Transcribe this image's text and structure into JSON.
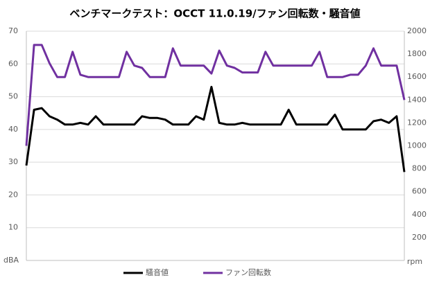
{
  "chart_data": {
    "type": "line",
    "title": "ベンチマークテスト：OCCT 11.0.19/ファン回転数・騒音値",
    "y_label": "dBA",
    "y2_label": "rpm",
    "ylim": [
      0,
      70
    ],
    "yticks": [
      10,
      20,
      30,
      40,
      50,
      60,
      70
    ],
    "y2lim": [
      0,
      2000
    ],
    "y2ticks": [
      200,
      400,
      600,
      800,
      1000,
      1200,
      1400,
      1600,
      1800,
      2000
    ],
    "grid": true,
    "legend": "bottom",
    "series": [
      {
        "name": "騒音値",
        "color": "#000000",
        "values": [
          29,
          46,
          46.5,
          44,
          43,
          41.5,
          41.5,
          42,
          41.5,
          44,
          41.5,
          41.5,
          41.5,
          41.5,
          41.5,
          44,
          43.5,
          43.5,
          43,
          41.5,
          41.5,
          41.5,
          44,
          43,
          53,
          42,
          41.5,
          41.5,
          42,
          41.5,
          41.5,
          41.5,
          41.5,
          41.5,
          46,
          41.5,
          41.5,
          41.5,
          41.5,
          41.5,
          44.5,
          40,
          40,
          40,
          40,
          42.5,
          43,
          42,
          44,
          27
        ]
      },
      {
        "name": "ファン回転数",
        "color": "#7030a0",
        "axis": "y2",
        "values": [
          1000,
          1880,
          1880,
          1720,
          1600,
          1600,
          1820,
          1620,
          1600,
          1600,
          1600,
          1600,
          1600,
          1820,
          1700,
          1680,
          1600,
          1600,
          1600,
          1850,
          1700,
          1700,
          1700,
          1700,
          1630,
          1830,
          1700,
          1680,
          1640,
          1640,
          1640,
          1820,
          1700,
          1700,
          1700,
          1700,
          1700,
          1700,
          1820,
          1600,
          1600,
          1600,
          1620,
          1620,
          1700,
          1850,
          1700,
          1700,
          1700,
          1400
        ]
      }
    ]
  }
}
